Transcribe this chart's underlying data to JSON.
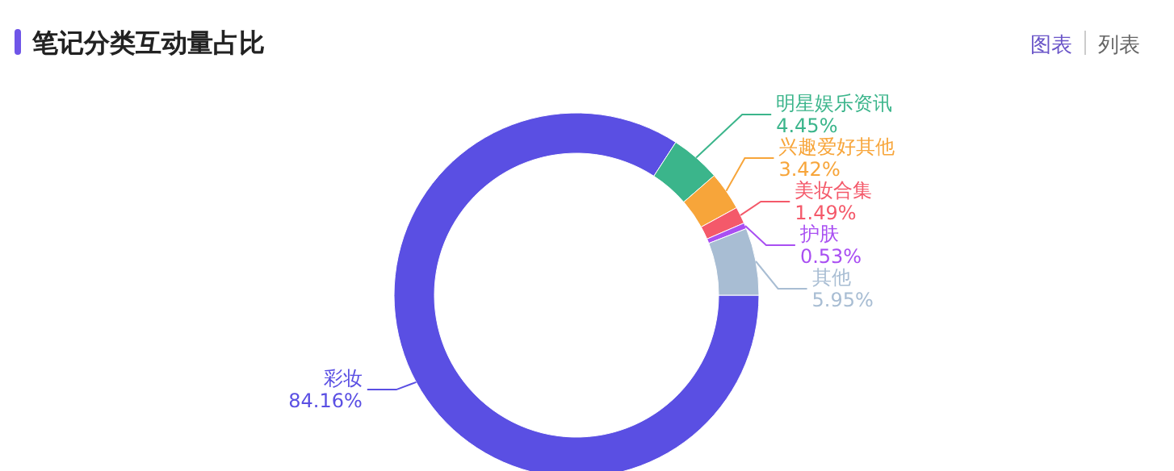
{
  "chart_data": {
    "type": "donut",
    "title": "笔记分类互动量占比",
    "categories": [
      "彩妆",
      "明星娱乐资讯",
      "兴趣爱好其他",
      "美妆合集",
      "护肤",
      "其他"
    ],
    "values": [
      84.16,
      4.45,
      3.42,
      1.49,
      0.53,
      5.95
    ],
    "colors": [
      "#5a4fe3",
      "#3bb58b",
      "#f7a53a",
      "#f4596a",
      "#a94ff2",
      "#a8bdd3"
    ],
    "value_labels": [
      "84.16%",
      "4.45%",
      "3.42%",
      "1.49%",
      "0.53%",
      "5.95%"
    ],
    "annotations": [
      "图表",
      "列表"
    ],
    "legend": false
  }
}
